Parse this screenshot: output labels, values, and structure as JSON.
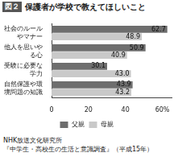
{
  "chart_data": {
    "type": "bar",
    "orientation": "horizontal",
    "title": "保護者が学校で教えてほしいこと",
    "annotations": [
      "図２",
      "NHK放送文化研究所",
      "『中学生・高校生の生活と意識調査』（平成15年）"
    ],
    "categories": [
      "社会のルールやマナー",
      "他人を思いやる心",
      "受験に必要な学力",
      "自然保護や環境問題の知識"
    ],
    "series": [
      {
        "name": "父親",
        "color": "#6e6e6e",
        "values": [
          62.7,
          50.9,
          30.1,
          43.9
        ],
        "value_labels": [
          "62.7",
          "50.9",
          "30.1",
          "43.9"
        ]
      },
      {
        "name": "母親",
        "color": "#c9c9c9",
        "values": [
          48.9,
          40.9,
          43.0,
          43.2
        ],
        "value_labels": [
          "48.9",
          "40.9",
          "43.0",
          "43.2"
        ]
      }
    ],
    "xlim": [
      0,
      65
    ],
    "xticks": [
      0,
      20,
      40,
      {
        "value": 60,
        "label": "60%"
      }
    ],
    "grid": false,
    "legend": "bottom",
    "data_labels": true
  }
}
